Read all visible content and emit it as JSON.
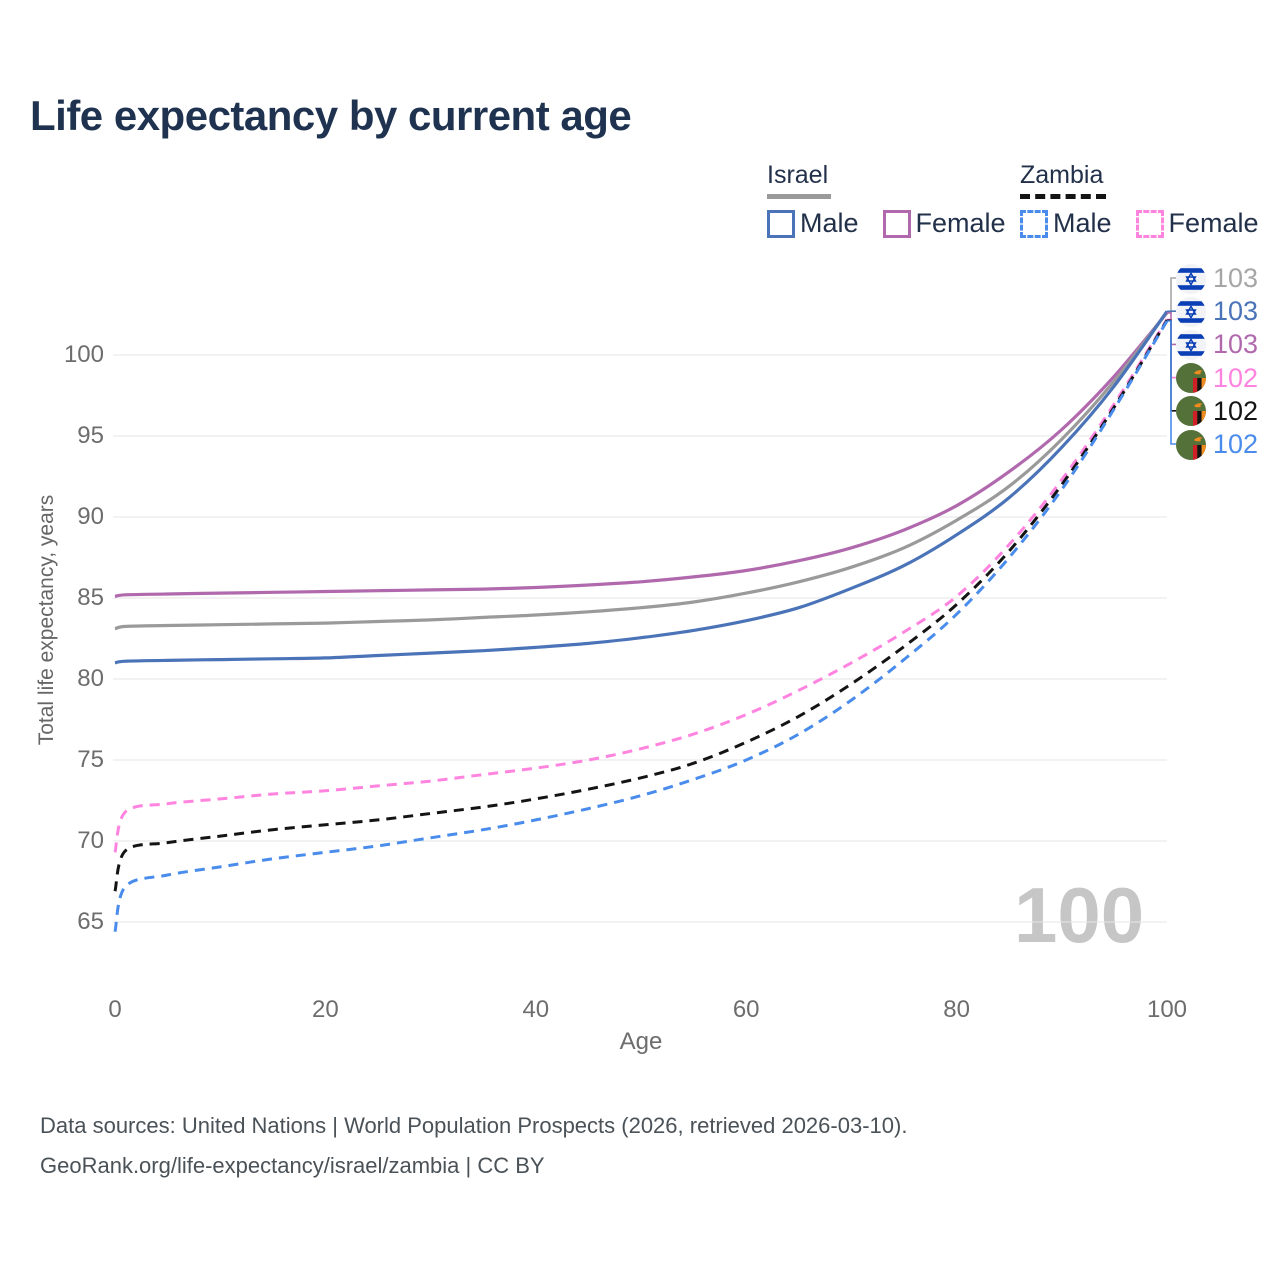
{
  "title": "Life expectancy by current age",
  "legend": {
    "israel": {
      "title": "Israel",
      "style": "solid",
      "items": [
        {
          "label": "Male",
          "color": "#4a73b8",
          "dashed": false
        },
        {
          "label": "Female",
          "color": "#b169ae",
          "dashed": false
        }
      ]
    },
    "zambia": {
      "title": "Zambia",
      "style": "dashed",
      "items": [
        {
          "label": "Male",
          "color": "#4a8ceb",
          "dashed": true
        },
        {
          "label": "Female",
          "color": "#ff84e0",
          "dashed": true
        }
      ]
    }
  },
  "watermark": "100",
  "footer": {
    "line1": "Data sources: United Nations | World Population Prospects (2026, retrieved 2026-03-10).",
    "line2": "GeoRank.org/life-expectancy/israel/zambia | CC BY"
  },
  "chart_data": {
    "type": "line",
    "title": "Life expectancy by current age",
    "xlabel": "Age",
    "ylabel": "Total life expectancy, years",
    "xlim": [
      0,
      100
    ],
    "ylim": [
      63,
      104
    ],
    "x_ticks": [
      0,
      20,
      40,
      60,
      80,
      100
    ],
    "y_ticks": [
      65,
      70,
      75,
      80,
      85,
      90,
      95,
      100
    ],
    "grid": "horizontal",
    "grid_color": "#e6e6e6",
    "ages": [
      0,
      1,
      5,
      10,
      15,
      20,
      25,
      30,
      35,
      40,
      45,
      50,
      55,
      60,
      65,
      70,
      75,
      80,
      85,
      90,
      95,
      100
    ],
    "series": [
      {
        "id": "israel-female",
        "country": "Israel",
        "sex": "Female",
        "color": "#b169ae",
        "dashed": false,
        "values": [
          85.1,
          85.2,
          85.25,
          85.3,
          85.35,
          85.4,
          85.45,
          85.5,
          85.55,
          85.65,
          85.8,
          86.0,
          86.3,
          86.7,
          87.3,
          88.1,
          89.2,
          90.7,
          92.8,
          95.4,
          98.7,
          102.6
        ]
      },
      {
        "id": "israel-combined",
        "country": "Israel",
        "sex": "Both",
        "color": "#9a9a9a",
        "dashed": false,
        "values": [
          83.1,
          83.25,
          83.3,
          83.35,
          83.4,
          83.45,
          83.55,
          83.65,
          83.8,
          83.95,
          84.15,
          84.4,
          84.75,
          85.3,
          86.0,
          86.9,
          88.1,
          89.8,
          91.9,
          94.8,
          98.4,
          102.65
        ]
      },
      {
        "id": "israel-male",
        "country": "Israel",
        "sex": "Male",
        "color": "#4a73b8",
        "dashed": false,
        "values": [
          81.0,
          81.1,
          81.15,
          81.2,
          81.25,
          81.3,
          81.45,
          81.6,
          81.75,
          81.95,
          82.2,
          82.55,
          83.0,
          83.6,
          84.4,
          85.6,
          87.0,
          88.9,
          91.2,
          94.3,
          98.1,
          102.7
        ]
      },
      {
        "id": "zambia-female",
        "country": "Zambia",
        "sex": "Female",
        "color": "#ff84e0",
        "dashed": true,
        "values": [
          69.3,
          71.8,
          72.3,
          72.6,
          72.9,
          73.1,
          73.4,
          73.7,
          74.1,
          74.5,
          75.0,
          75.7,
          76.6,
          77.8,
          79.3,
          81.0,
          82.9,
          85.1,
          88.3,
          92.3,
          97.0,
          102.2
        ]
      },
      {
        "id": "zambia-combined",
        "country": "Zambia",
        "sex": "Both",
        "color": "#141414",
        "dashed": true,
        "values": [
          66.9,
          69.4,
          69.9,
          70.3,
          70.7,
          71.0,
          71.3,
          71.7,
          72.1,
          72.6,
          73.2,
          73.9,
          74.8,
          76.1,
          77.7,
          79.7,
          82.0,
          84.6,
          87.9,
          92.0,
          96.8,
          102.15
        ]
      },
      {
        "id": "zambia-male",
        "country": "Zambia",
        "sex": "Male",
        "color": "#4a8ceb",
        "dashed": true,
        "values": [
          64.4,
          67.2,
          67.9,
          68.4,
          68.9,
          69.3,
          69.7,
          70.2,
          70.7,
          71.3,
          72.0,
          72.8,
          73.8,
          75.0,
          76.6,
          78.7,
          81.2,
          84.0,
          87.5,
          91.7,
          96.7,
          102.1
        ]
      }
    ],
    "end_labels": [
      {
        "series": "israel-combined",
        "value": "103",
        "color": "#a6a6a6",
        "flag": "israel"
      },
      {
        "series": "israel-male",
        "value": "103",
        "color": "#4a73b8",
        "flag": "israel"
      },
      {
        "series": "israel-female",
        "value": "103",
        "color": "#b169ae",
        "flag": "israel"
      },
      {
        "series": "zambia-female",
        "value": "102",
        "color": "#ff84e0",
        "flag": "zambia"
      },
      {
        "series": "zambia-combined",
        "value": "102",
        "color": "#141414",
        "flag": "zambia"
      },
      {
        "series": "zambia-male",
        "value": "102",
        "color": "#4a8ceb",
        "flag": "zambia"
      }
    ],
    "legend_position": "top-right"
  }
}
